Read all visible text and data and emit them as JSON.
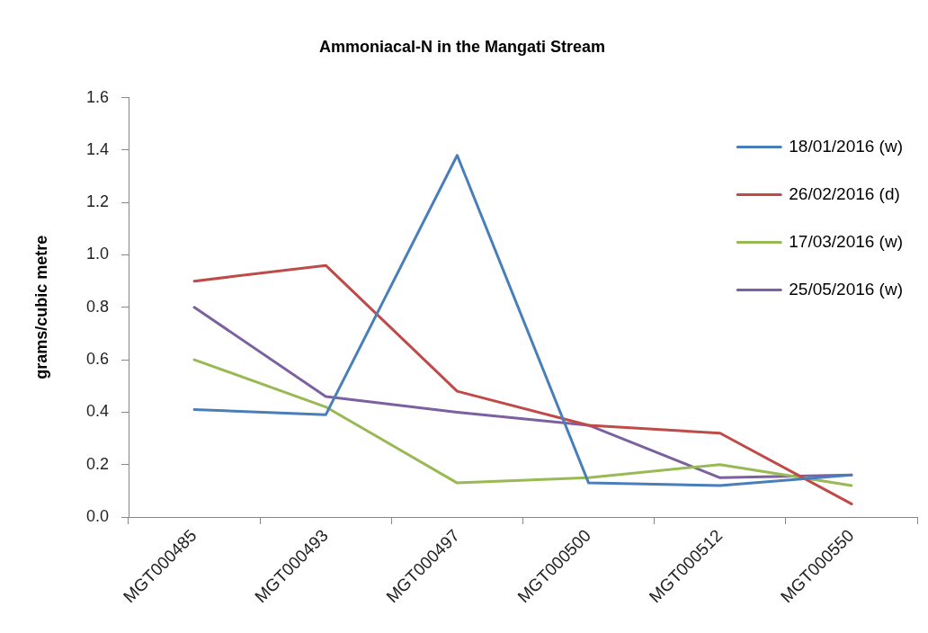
{
  "chart_data": {
    "type": "line",
    "title": "Ammoniacal-N in the Mangati Stream",
    "ylabel": "grams/cubic metre",
    "categories": [
      "MGT000485",
      "MGT000493",
      "MGT000497",
      "MGT000500",
      "MGT000512",
      "MGT000550"
    ],
    "series": [
      {
        "name": "18/01/2016 (w)",
        "color": "#4a7ebb",
        "values": [
          0.41,
          0.39,
          1.38,
          0.13,
          0.12,
          0.16
        ]
      },
      {
        "name": "26/02/2016 (d)",
        "color": "#be4b48",
        "values": [
          0.9,
          0.96,
          0.48,
          0.35,
          0.32,
          0.05
        ]
      },
      {
        "name": "17/03/2016 (w)",
        "color": "#98b954",
        "values": [
          0.6,
          0.42,
          0.13,
          0.15,
          0.2,
          0.12
        ]
      },
      {
        "name": "25/05/2016 (w)",
        "color": "#7d60a0",
        "values": [
          0.8,
          0.46,
          0.4,
          0.35,
          0.15,
          0.16
        ]
      }
    ],
    "ylim": [
      0,
      1.6
    ],
    "yticks": [
      {
        "value": 0,
        "label": "0.0"
      },
      0.2,
      0.4,
      0.6,
      0.8,
      {
        "value": 1,
        "label": "1.0"
      },
      1.2,
      1.4,
      1.6
    ],
    "grid": false,
    "legend": "top right",
    "marker": "none",
    "line_style": "solid"
  }
}
